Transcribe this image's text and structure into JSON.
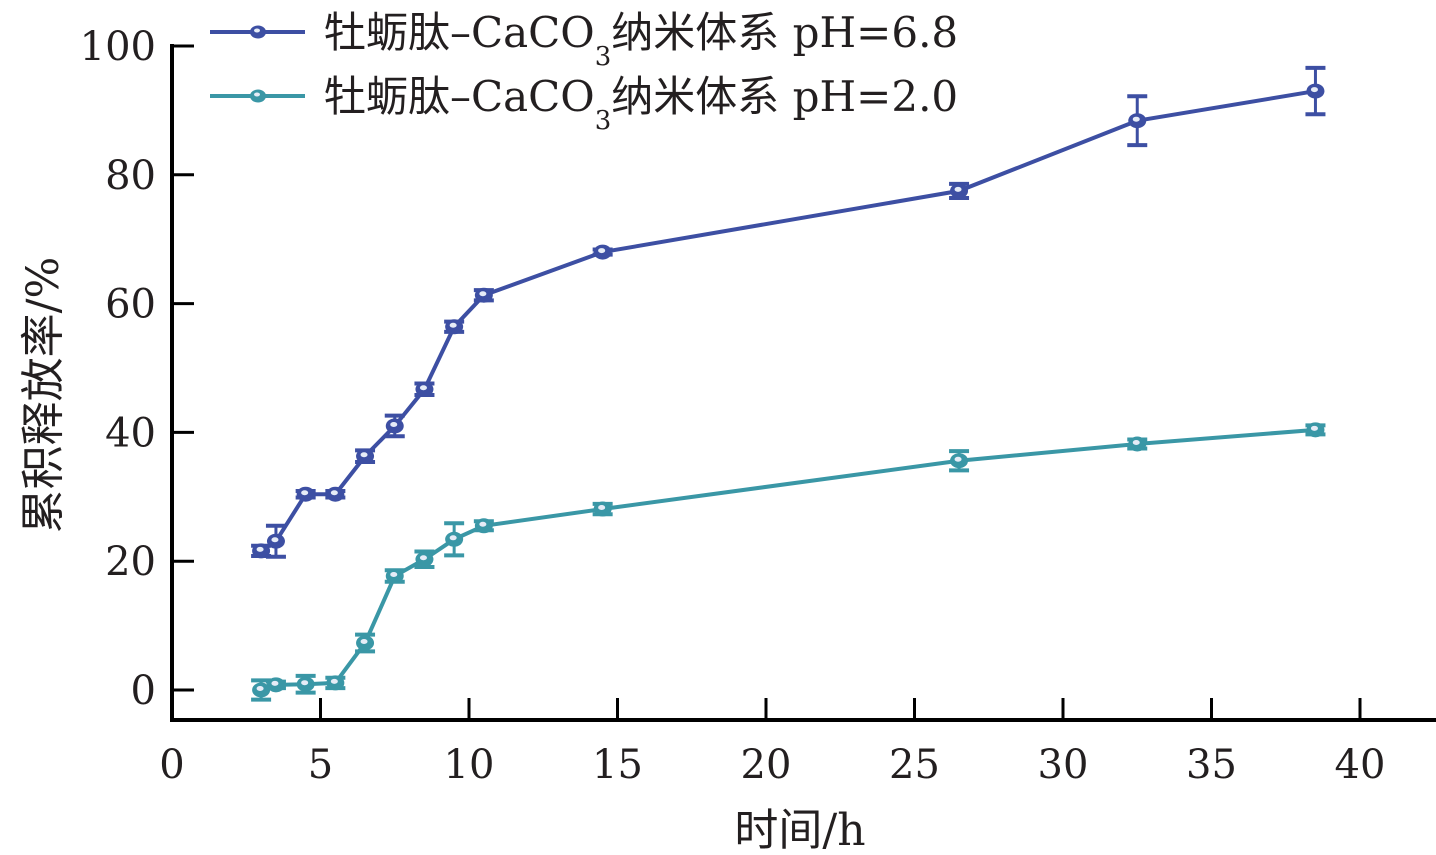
{
  "chart_data": {
    "type": "line",
    "title": "",
    "xlabel": "时间/h",
    "ylabel": "累积释放率/%",
    "xlim": [
      0,
      42.5
    ],
    "ylim": [
      -5,
      100
    ],
    "xticks": [
      0,
      5,
      10,
      15,
      20,
      25,
      30,
      35,
      40
    ],
    "xtick_labels": [
      "0",
      "5",
      "10",
      "15",
      "20",
      "25",
      "30",
      "35",
      "40"
    ],
    "yticks": [
      0,
      20,
      40,
      60,
      80,
      100
    ],
    "ytick_labels": [
      "0",
      "20",
      "40",
      "60",
      "80",
      "100"
    ],
    "grid": false,
    "legend_position": "top-left",
    "x": [
      3.0,
      3.5,
      4.5,
      5.5,
      6.5,
      7.5,
      8.5,
      9.5,
      10.5,
      14.5,
      26.5,
      32.5,
      38.5
    ],
    "series": [
      {
        "name": "牡蛎肽-CaCO3纳米体系 pH=6.8",
        "legend_prefix": "牡蛎肽–CaCO",
        "legend_subscript": "3",
        "legend_suffix": "纳米体系 pH=6.8",
        "color": "#3d4fa3",
        "values": [
          21.6,
          23.1,
          30.4,
          30.4,
          36.3,
          41.0,
          46.7,
          56.4,
          61.3,
          68.0,
          77.5,
          88.4,
          93.0
        ],
        "errors": [
          0.8,
          2.4,
          0.5,
          0.5,
          0.9,
          1.6,
          0.9,
          0.8,
          0.8,
          0.4,
          1.1,
          3.8,
          3.6
        ]
      },
      {
        "name": "牡蛎肽-CaCO3纳米体系 pH=2.0",
        "legend_prefix": "牡蛎肽–CaCO",
        "legend_subscript": "3",
        "legend_suffix": "纳米体系 pH=2.0",
        "color": "#3a97a6",
        "values": [
          0.0,
          0.8,
          0.9,
          1.1,
          7.3,
          17.7,
          20.3,
          23.4,
          25.5,
          28.1,
          35.6,
          38.2,
          40.4
        ],
        "errors": [
          1.5,
          0.5,
          1.3,
          0.8,
          1.3,
          0.9,
          1.2,
          2.5,
          0.7,
          0.8,
          1.5,
          0.7,
          0.7
        ]
      }
    ]
  }
}
